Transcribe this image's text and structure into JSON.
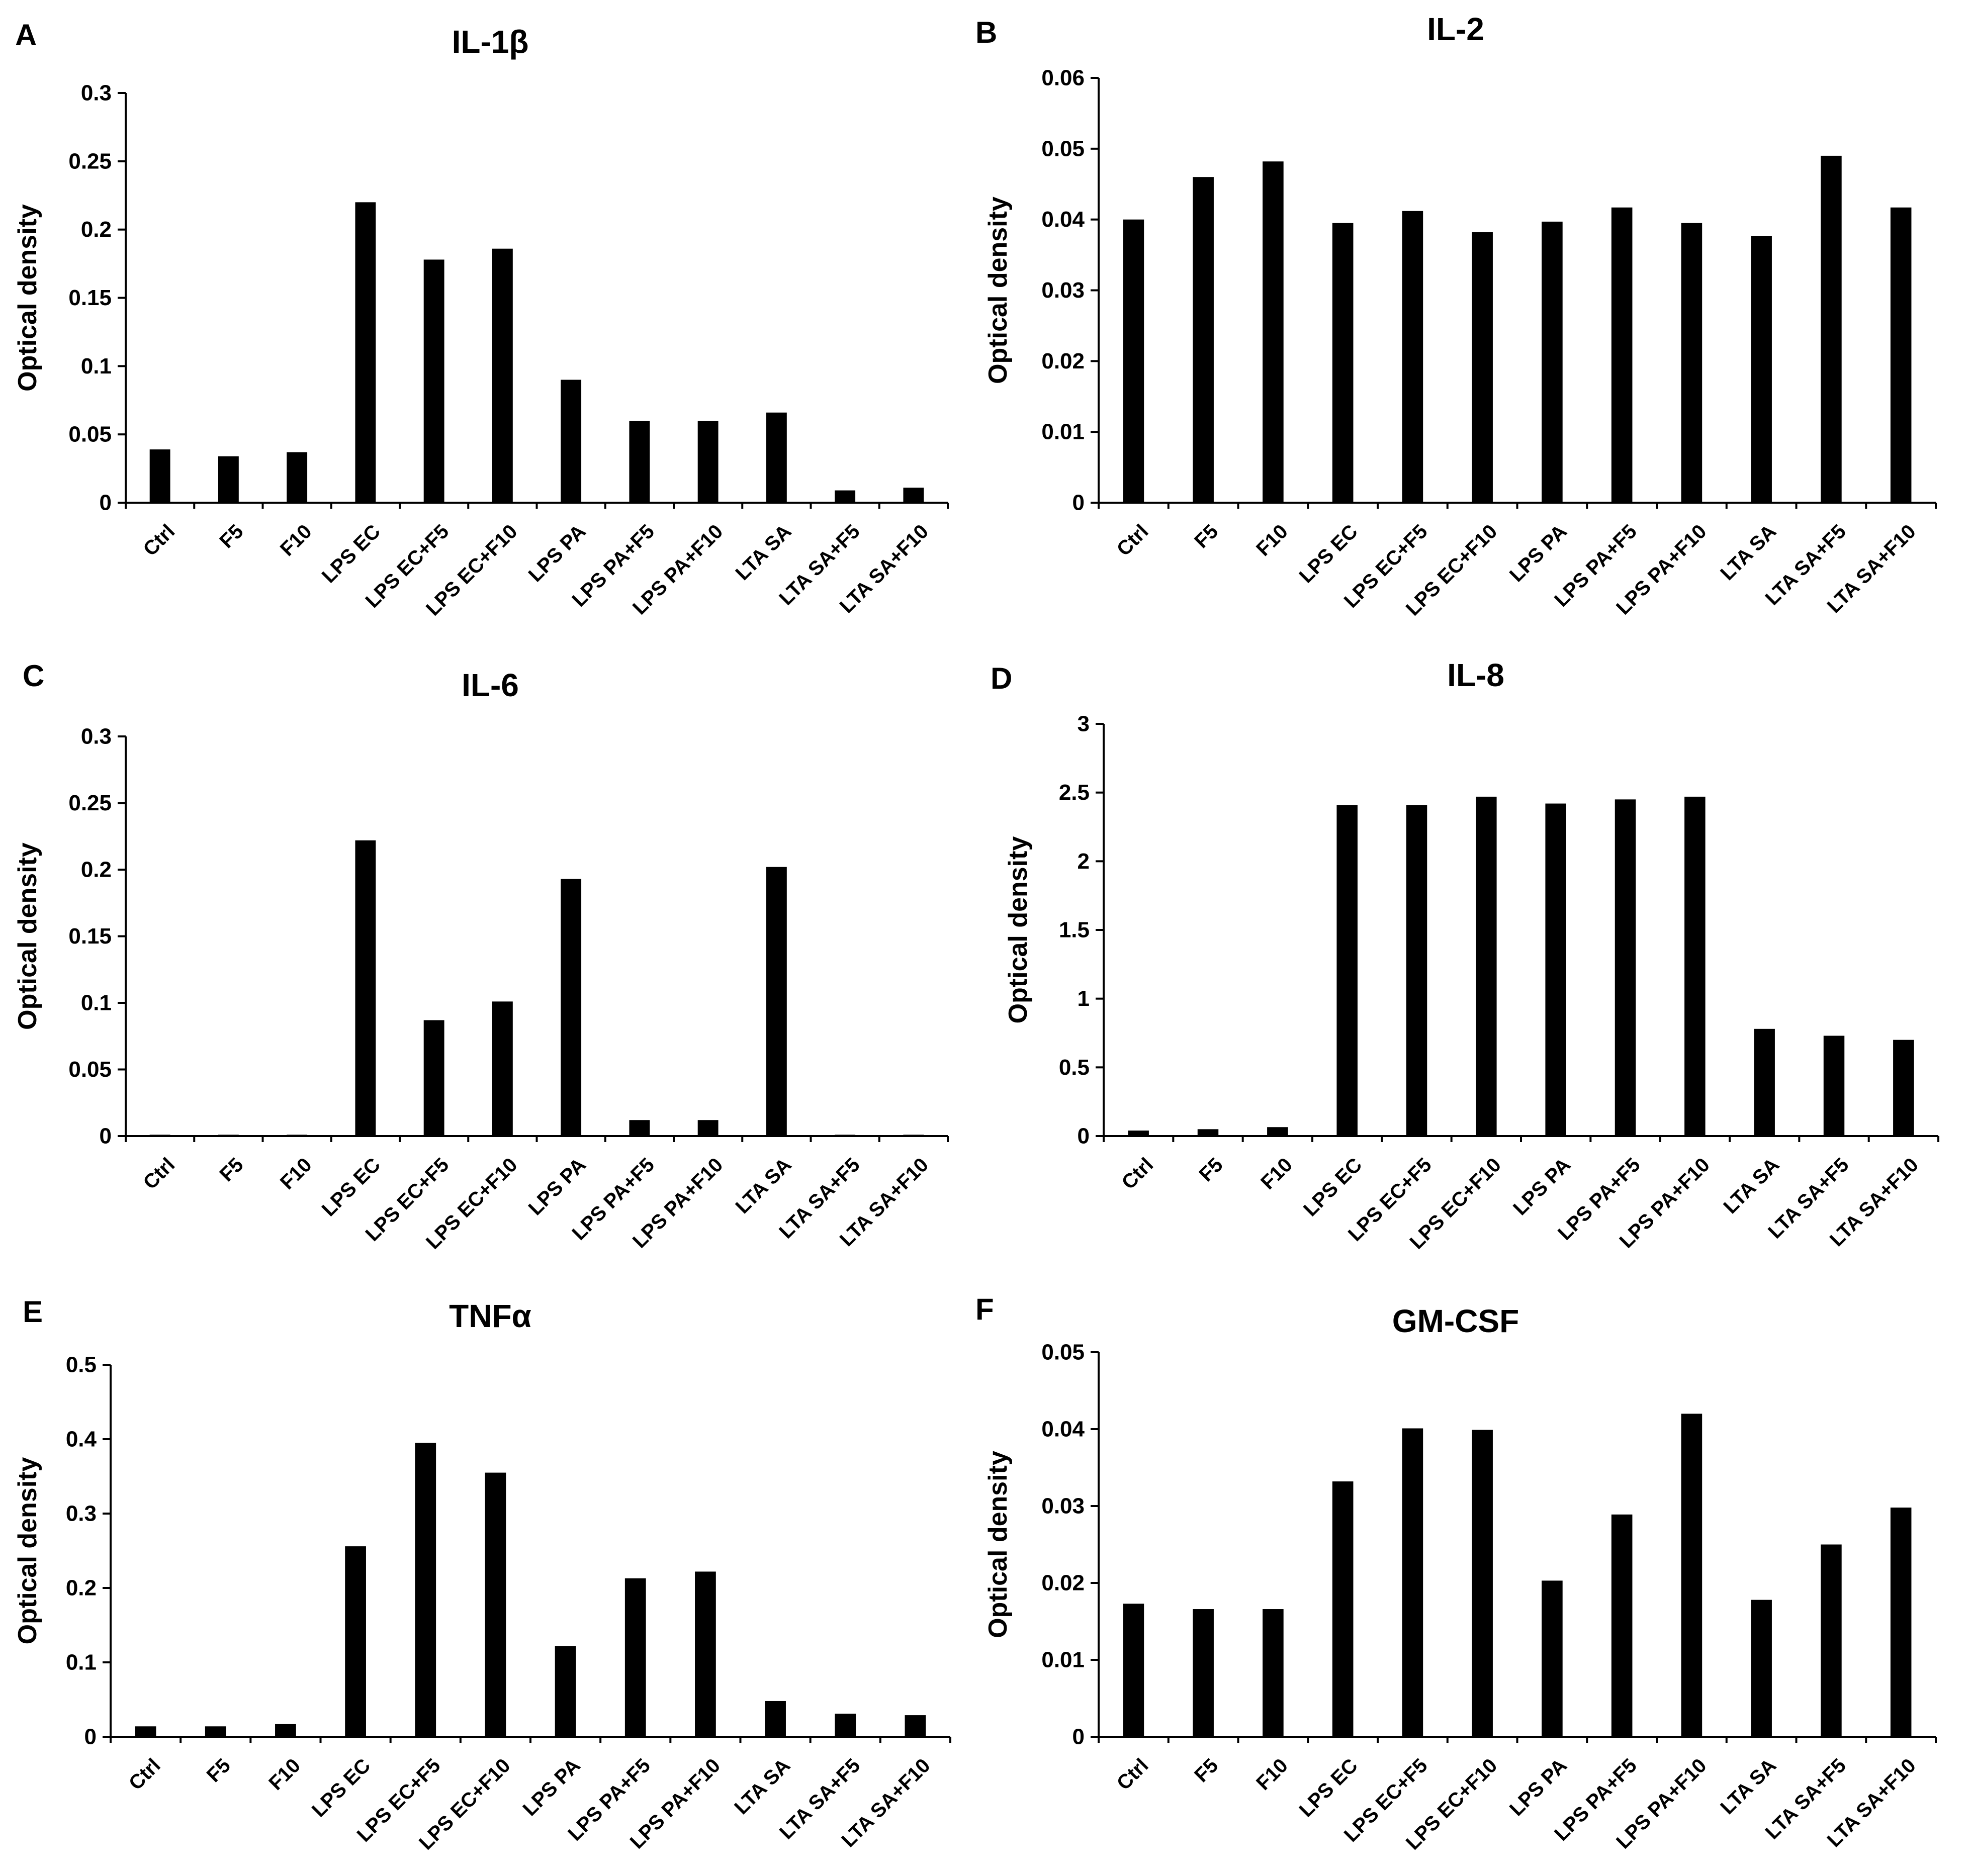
{
  "figure": {
    "bar_color": "#000000",
    "background": "#ffffff"
  },
  "chart_data": [
    {
      "panel": "A",
      "type": "bar",
      "title": "IL-1β",
      "xlabel": "",
      "ylabel": "Optical density",
      "categories": [
        "Ctrl",
        "F5",
        "F10",
        "LPS EC",
        "LPS EC+F5",
        "LPS EC+F10",
        "LPS PA",
        "LPS PA+F5",
        "LPS PA+F10",
        "LTA SA",
        "LTA SA+F5",
        "LTA SA+F10"
      ],
      "values": [
        0.039,
        0.034,
        0.037,
        0.22,
        0.178,
        0.186,
        0.09,
        0.06,
        0.06,
        0.066,
        0.009,
        0.011
      ],
      "ylim": [
        0,
        0.3
      ],
      "yticks": [
        "0",
        "0.05",
        "0.1",
        "0.15",
        "0.2",
        "0.25",
        "0.3"
      ]
    },
    {
      "panel": "B",
      "type": "bar",
      "title": "IL-2",
      "xlabel": "",
      "ylabel": "Optical density",
      "categories": [
        "Ctrl",
        "F5",
        "F10",
        "LPS EC",
        "LPS EC+F5",
        "LPS EC+F10",
        "LPS PA",
        "LPS PA+F5",
        "LPS PA+F10",
        "LTA SA",
        "LTA SA+F5",
        "LTA SA+F10"
      ],
      "values": [
        0.04,
        0.046,
        0.0482,
        0.0395,
        0.0412,
        0.0382,
        0.0397,
        0.0417,
        0.0395,
        0.0377,
        0.049,
        0.0417
      ],
      "ylim": [
        0,
        0.06
      ],
      "yticks": [
        "0",
        "0.01",
        "0.02",
        "0.03",
        "0.04",
        "0.05",
        "0.06"
      ]
    },
    {
      "panel": "C",
      "type": "bar",
      "title": "IL-6",
      "xlabel": "",
      "ylabel": "Optical density",
      "categories": [
        "Ctrl",
        "F5",
        "F10",
        "LPS EC",
        "LPS EC+F5",
        "LPS EC+F10",
        "LPS PA",
        "LPS PA+F5",
        "LPS PA+F10",
        "LTA SA",
        "LTA SA+F5",
        "LTA SA+F10"
      ],
      "values": [
        0.001,
        0.001,
        0.001,
        0.222,
        0.087,
        0.101,
        0.193,
        0.012,
        0.012,
        0.202,
        0.001,
        0.001
      ],
      "ylim": [
        0,
        0.3
      ],
      "yticks": [
        "0",
        "0.05",
        "0.1",
        "0.15",
        "0.2",
        "0.25",
        "0.3"
      ]
    },
    {
      "panel": "D",
      "type": "bar",
      "title": "IL-8",
      "xlabel": "",
      "ylabel": "Optical density",
      "categories": [
        "Ctrl",
        "F5",
        "F10",
        "LPS EC",
        "LPS EC+F5",
        "LPS EC+F10",
        "LPS PA",
        "LPS PA+F5",
        "LPS PA+F10",
        "LTA SA",
        "LTA SA+F5",
        "LTA SA+F10"
      ],
      "values": [
        0.04,
        0.05,
        0.065,
        2.41,
        2.41,
        2.47,
        2.42,
        2.45,
        2.47,
        0.78,
        0.73,
        0.7
      ],
      "ylim": [
        0,
        3
      ],
      "yticks": [
        "0",
        "0.5",
        "1",
        "1.5",
        "2",
        "2.5",
        "3"
      ]
    },
    {
      "panel": "E",
      "type": "bar",
      "title": "TNFα",
      "xlabel": "",
      "ylabel": "Optical density",
      "categories": [
        "Ctrl",
        "F5",
        "F10",
        "LPS EC",
        "LPS EC+F5",
        "LPS EC+F10",
        "LPS PA",
        "LPS PA+F5",
        "LPS PA+F10",
        "LTA SA",
        "LTA SA+F5",
        "LTA SA+F10"
      ],
      "values": [
        0.014,
        0.014,
        0.017,
        0.256,
        0.395,
        0.355,
        0.122,
        0.213,
        0.222,
        0.048,
        0.031,
        0.029
      ],
      "ylim": [
        0,
        0.5
      ],
      "yticks": [
        "0",
        "0.1",
        "0.2",
        "0.3",
        "0.4",
        "0.5"
      ]
    },
    {
      "panel": "F",
      "type": "bar",
      "title": "GM-CSF",
      "xlabel": "",
      "ylabel": "Optical density",
      "categories": [
        "Ctrl",
        "F5",
        "F10",
        "LPS EC",
        "LPS EC+F5",
        "LPS EC+F10",
        "LPS PA",
        "LPS PA+F5",
        "LPS PA+F10",
        "LTA SA",
        "LTA SA+F5",
        "LTA SA+F10"
      ],
      "values": [
        0.0173,
        0.0166,
        0.0166,
        0.0332,
        0.0401,
        0.0399,
        0.0203,
        0.0289,
        0.042,
        0.0178,
        0.025,
        0.0298
      ],
      "ylim": [
        0,
        0.05
      ],
      "yticks": [
        "0",
        "0.01",
        "0.02",
        "0.03",
        "0.04",
        "0.05"
      ]
    }
  ]
}
